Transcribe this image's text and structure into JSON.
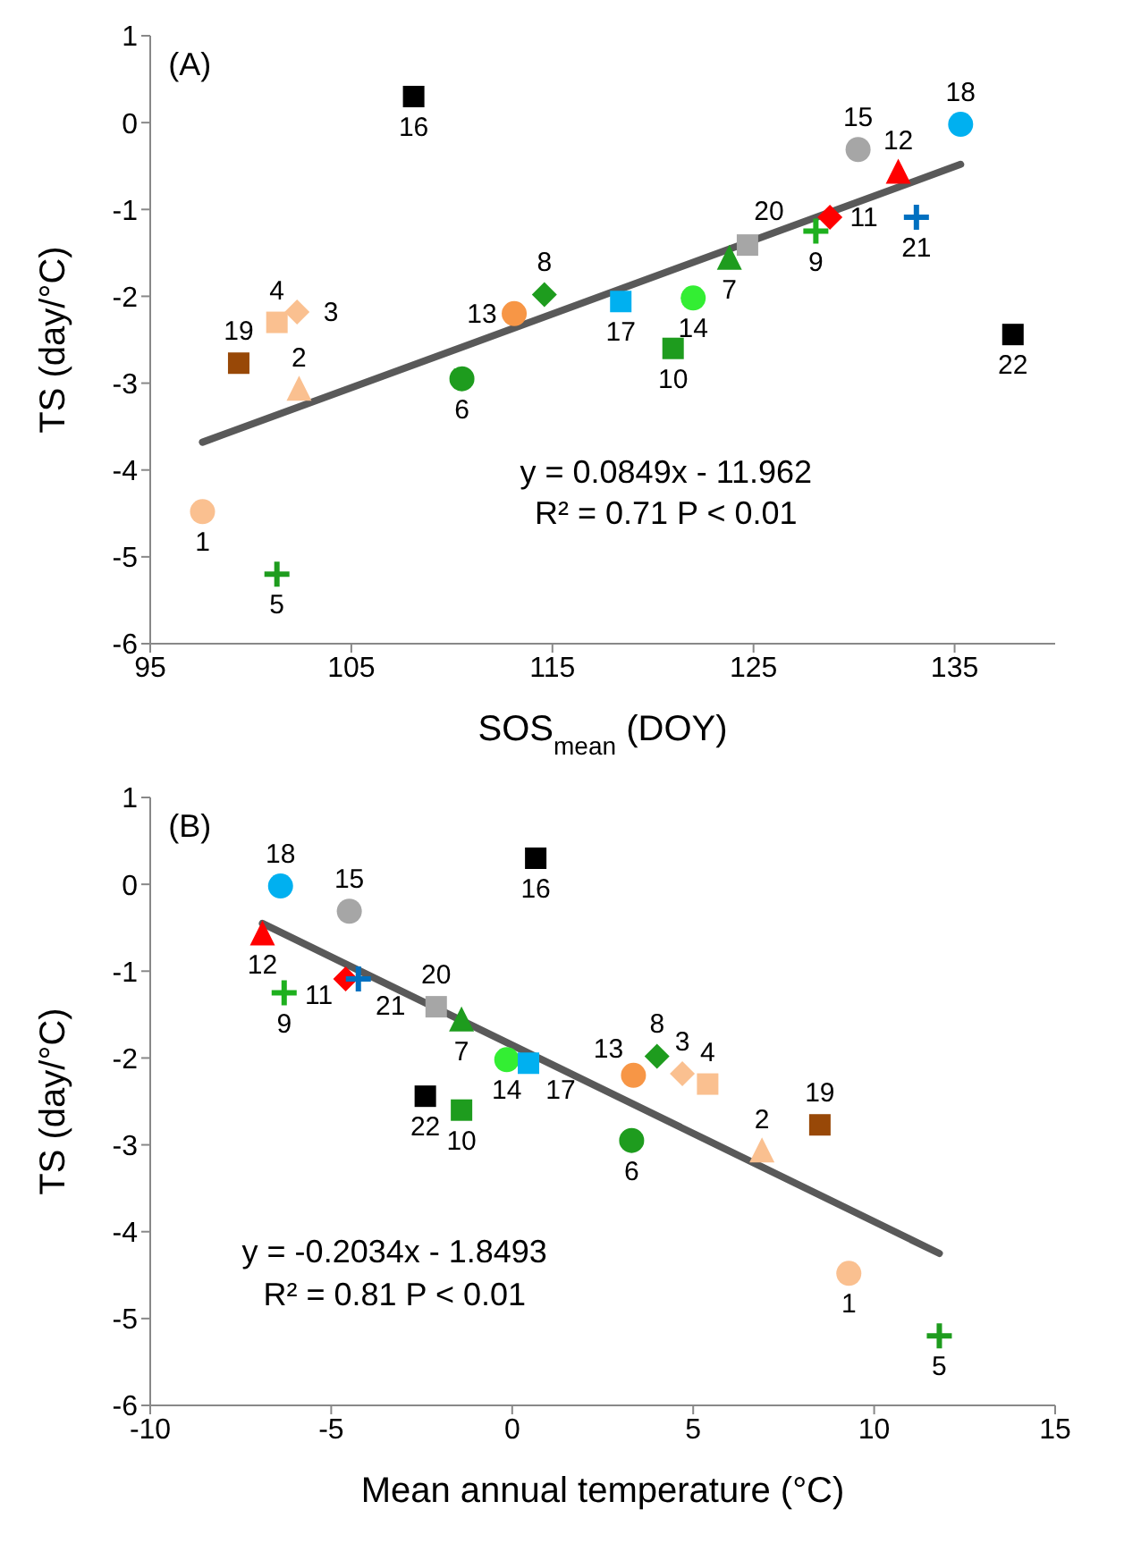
{
  "chart_data": [
    {
      "type": "scatter",
      "xlabel": "SOS$_{mean}$ (DOY)",
      "ylabel": "TS (day/°C)",
      "xlim": [
        95,
        140
      ],
      "xticks": [
        95,
        105,
        115,
        125,
        135
      ],
      "ylim": [
        -6,
        1
      ],
      "yticks": [
        -6,
        -5,
        -4,
        -3,
        -2,
        -1,
        0,
        1
      ],
      "annotations": [
        "(A)",
        "y = 0.0849x - 11.962",
        "R² = 0.71 P < 0.01"
      ],
      "series": [
        {
          "type": "line",
          "color": "#595959",
          "marker": "none",
          "x": [
            97.6,
            135.3
          ],
          "values": [
            -3.68,
            -0.48
          ]
        },
        {
          "name": "1",
          "color": "#fac090",
          "marker": "circle",
          "x": [
            97.6
          ],
          "values": [
            -4.48
          ]
        },
        {
          "name": "2",
          "color": "#fac090",
          "marker": "triangle",
          "x": [
            102.4
          ],
          "values": [
            -3.08
          ]
        },
        {
          "name": "3",
          "color": "#fac090",
          "marker": "diamond",
          "x": [
            102.3
          ],
          "values": [
            -2.18
          ]
        },
        {
          "name": "4",
          "color": "#fac090",
          "marker": "square",
          "x": [
            101.3
          ],
          "values": [
            -2.3
          ]
        },
        {
          "name": "5",
          "color": "#1e9c1e",
          "marker": "cross",
          "x": [
            101.3
          ],
          "values": [
            -5.2
          ]
        },
        {
          "name": "6",
          "color": "#1e9c1e",
          "marker": "circle",
          "x": [
            110.5
          ],
          "values": [
            -2.95
          ]
        },
        {
          "name": "7",
          "color": "#1e9c1e",
          "marker": "triangle",
          "x": [
            123.8
          ],
          "values": [
            -1.57
          ]
        },
        {
          "name": "8",
          "color": "#1e9c1e",
          "marker": "diamond",
          "x": [
            114.6
          ],
          "values": [
            -1.98
          ]
        },
        {
          "name": "9",
          "color": "#1eb01e",
          "marker": "cross",
          "x": [
            128.1
          ],
          "values": [
            -1.25
          ]
        },
        {
          "name": "10",
          "color": "#1e9c1e",
          "marker": "square",
          "x": [
            121
          ],
          "values": [
            -2.6
          ]
        },
        {
          "name": "11",
          "color": "#ff0000",
          "marker": "diamond",
          "x": [
            128.8
          ],
          "values": [
            -1.09
          ]
        },
        {
          "name": "12",
          "color": "#ff0000",
          "marker": "triangle",
          "x": [
            132.2
          ],
          "values": [
            -0.58
          ]
        },
        {
          "name": "13",
          "color": "#f79646",
          "marker": "circle",
          "x": [
            113.1
          ],
          "values": [
            -2.2
          ]
        },
        {
          "name": "14",
          "color": "#33ee33",
          "marker": "circle",
          "x": [
            122
          ],
          "values": [
            -2.02
          ]
        },
        {
          "name": "15",
          "color": "#a6a6a6",
          "marker": "circle",
          "x": [
            130.2
          ],
          "values": [
            -0.31
          ]
        },
        {
          "name": "16",
          "color": "#000000",
          "marker": "square",
          "x": [
            108.1
          ],
          "values": [
            0.3
          ]
        },
        {
          "name": "17",
          "color": "#00b0f0",
          "marker": "square",
          "x": [
            118.4
          ],
          "values": [
            -2.06
          ]
        },
        {
          "name": "18",
          "color": "#00b0f0",
          "marker": "circle",
          "x": [
            135.3
          ],
          "values": [
            -0.02
          ]
        },
        {
          "name": "19",
          "color": "#984807",
          "marker": "square",
          "x": [
            99.4
          ],
          "values": [
            -2.77
          ]
        },
        {
          "name": "20",
          "color": "#a6a6a6",
          "marker": "square",
          "x": [
            124.7
          ],
          "values": [
            -1.41
          ]
        },
        {
          "name": "21",
          "color": "#0070c0",
          "marker": "cross",
          "x": [
            133.1
          ],
          "values": [
            -1.09
          ]
        },
        {
          "name": "22",
          "color": "#000000",
          "marker": "square",
          "x": [
            137.9
          ],
          "values": [
            -2.44
          ]
        }
      ]
    },
    {
      "type": "scatter",
      "xlabel": "Mean annual temperature (°C)",
      "ylabel": "TS (day/°C)",
      "xlim": [
        -10,
        15
      ],
      "xticks": [
        -10,
        -5,
        0,
        5,
        10,
        15
      ],
      "ylim": [
        -6,
        1
      ],
      "yticks": [
        -6,
        -5,
        -4,
        -3,
        -2,
        -1,
        0,
        1
      ],
      "annotations": [
        "(B)",
        "y = -0.2034x - 1.8493",
        "R² = 0.81 P < 0.01"
      ],
      "series": [
        {
          "type": "line",
          "color": "#595959",
          "marker": "none",
          "x": [
            -6.9,
            11.8
          ],
          "values": [
            -0.45,
            -4.25
          ]
        },
        {
          "name": "1",
          "color": "#fac090",
          "marker": "circle",
          "x": [
            9.3
          ],
          "values": [
            -4.48
          ]
        },
        {
          "name": "2",
          "color": "#fac090",
          "marker": "triangle",
          "x": [
            6.9
          ],
          "values": [
            -3.08
          ]
        },
        {
          "name": "3",
          "color": "#fac090",
          "marker": "diamond",
          "x": [
            4.7
          ],
          "values": [
            -2.18
          ]
        },
        {
          "name": "4",
          "color": "#fac090",
          "marker": "square",
          "x": [
            5.4
          ],
          "values": [
            -2.3
          ]
        },
        {
          "name": "5",
          "color": "#1e9c1e",
          "marker": "cross",
          "x": [
            11.8
          ],
          "values": [
            -5.2
          ]
        },
        {
          "name": "6",
          "color": "#1e9c1e",
          "marker": "circle",
          "x": [
            3.3
          ],
          "values": [
            -2.95
          ]
        },
        {
          "name": "7",
          "color": "#1e9c1e",
          "marker": "triangle",
          "x": [
            -1.4
          ],
          "values": [
            -1.57
          ]
        },
        {
          "name": "8",
          "color": "#1e9c1e",
          "marker": "diamond",
          "x": [
            4
          ],
          "values": [
            -1.98
          ]
        },
        {
          "name": "9",
          "color": "#1eb01e",
          "marker": "cross",
          "x": [
            -6.3
          ],
          "values": [
            -1.25
          ]
        },
        {
          "name": "10",
          "color": "#1e9c1e",
          "marker": "square",
          "x": [
            -1.4
          ],
          "values": [
            -2.6
          ]
        },
        {
          "name": "11",
          "color": "#ff0000",
          "marker": "diamond",
          "x": [
            -4.6
          ],
          "values": [
            -1.09
          ]
        },
        {
          "name": "12",
          "color": "#ff0000",
          "marker": "triangle",
          "x": [
            -6.9
          ],
          "values": [
            -0.58
          ]
        },
        {
          "name": "13",
          "color": "#f79646",
          "marker": "circle",
          "x": [
            3.35
          ],
          "values": [
            -2.2
          ]
        },
        {
          "name": "14",
          "color": "#33ee33",
          "marker": "circle",
          "x": [
            -0.15
          ],
          "values": [
            -2.02
          ]
        },
        {
          "name": "15",
          "color": "#a6a6a6",
          "marker": "circle",
          "x": [
            -4.5
          ],
          "values": [
            -0.31
          ]
        },
        {
          "name": "16",
          "color": "#000000",
          "marker": "square",
          "x": [
            0.65
          ],
          "values": [
            0.3
          ]
        },
        {
          "name": "17",
          "color": "#00b0f0",
          "marker": "square",
          "x": [
            0.45
          ],
          "values": [
            -2.06
          ]
        },
        {
          "name": "18",
          "color": "#00b0f0",
          "marker": "circle",
          "x": [
            -6.4
          ],
          "values": [
            -0.02
          ]
        },
        {
          "name": "19",
          "color": "#984807",
          "marker": "square",
          "x": [
            8.5
          ],
          "values": [
            -2.77
          ]
        },
        {
          "name": "20",
          "color": "#a6a6a6",
          "marker": "square",
          "x": [
            -2.1
          ],
          "values": [
            -1.41
          ]
        },
        {
          "name": "21",
          "color": "#0070c0",
          "marker": "cross",
          "x": [
            -4.25
          ],
          "values": [
            -1.09
          ]
        },
        {
          "name": "22",
          "color": "#000000",
          "marker": "square",
          "x": [
            -2.4
          ],
          "values": [
            -2.44
          ]
        }
      ]
    }
  ]
}
